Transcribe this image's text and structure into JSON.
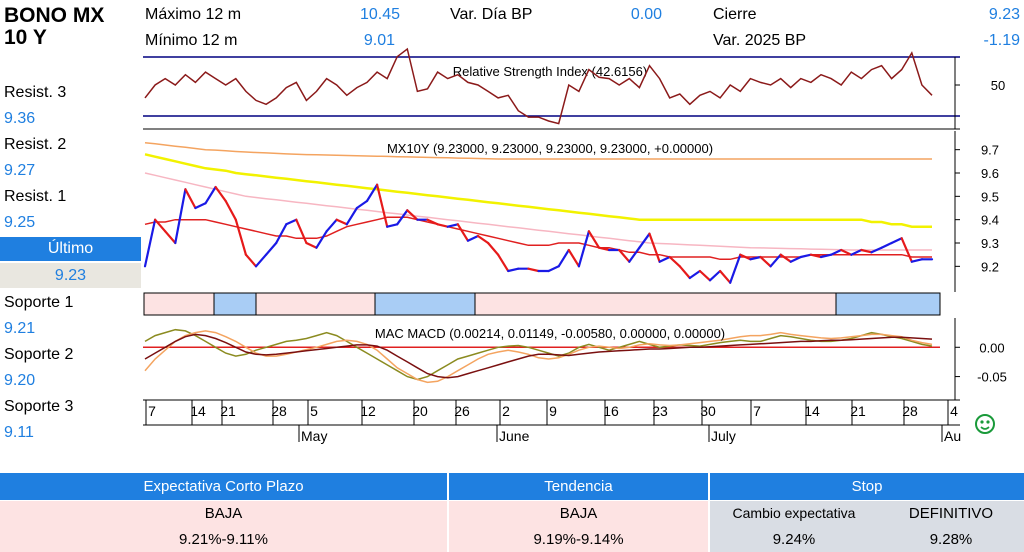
{
  "header": {
    "title_line1": "BONO MX",
    "title_line2": "10 Y",
    "max_label": "Máximo 12 m",
    "max_value": "10.45",
    "min_label": "Mínimo 12 m",
    "min_value": "9.01",
    "var_dia_label": "Var. Día BP",
    "var_dia_value": "0.00",
    "cierre_label": "Cierre",
    "cierre_value": "9.23",
    "var_2025_label": "Var. 2025 BP",
    "var_2025_value": "-1.19"
  },
  "levels": {
    "resist3_label": "Resist. 3",
    "resist3_value": "9.36",
    "resist2_label": "Resist. 2",
    "resist2_value": "9.27",
    "resist1_label": "Resist. 1",
    "resist1_value": "9.25",
    "ultimo_label": "Último",
    "ultimo_value": "9.23",
    "soporte1_label": "Soporte 1",
    "soporte1_value": "9.21",
    "soporte2_label": "Soporte 2",
    "soporte2_value": "9.20",
    "soporte3_label": "Soporte 3",
    "soporte3_value": "9.11"
  },
  "bottom": {
    "expectativa_header": "Expectativa Corto Plazo",
    "expectativa_value": "BAJA",
    "expectativa_range": "9.21%-9.11%",
    "tendencia_header": "Tendencia",
    "tendencia_value": "BAJA",
    "tendencia_range": "9.19%-9.14%",
    "stop_header": "Stop",
    "cambio_label": "Cambio expectativa",
    "cambio_value": "9.24%",
    "definitivo_label": "DEFINITIVO",
    "definitivo_value": "9.28%"
  },
  "colors": {
    "accent": "#1f7fe0",
    "price_up": "#1a1ae6",
    "price_down": "#e61a1a",
    "rsi_line": "#8b1a1a",
    "band_pink": "#fde3e3",
    "band_blue": "#a9cdf5"
  },
  "chart_data": [
    {
      "type": "line",
      "title": "Relative Strength Index (42.6156)",
      "yticks": [
        50
      ],
      "ylim": [
        15,
        85
      ],
      "bands": [
        30,
        70
      ],
      "x": [
        0,
        1,
        2,
        3,
        4,
        5,
        6,
        7,
        8,
        9,
        10,
        11,
        12,
        13,
        14,
        15,
        16,
        17,
        18,
        19,
        20,
        21,
        22,
        23,
        24,
        25,
        26,
        27,
        28,
        29,
        30,
        31,
        32,
        33,
        34,
        35,
        36,
        37,
        38,
        39,
        40,
        41,
        42,
        43,
        44,
        45,
        46,
        47,
        48,
        49,
        50,
        51,
        52,
        53,
        54,
        55,
        56,
        57,
        58,
        59,
        60,
        61,
        62,
        63,
        64,
        65,
        66,
        67,
        68,
        69,
        70,
        71,
        72,
        73,
        74,
        75,
        76,
        77,
        78
      ],
      "values": [
        40,
        50,
        55,
        50,
        58,
        52,
        60,
        55,
        50,
        55,
        45,
        38,
        35,
        40,
        48,
        52,
        38,
        45,
        55,
        50,
        42,
        48,
        52,
        60,
        55,
        72,
        78,
        45,
        47,
        60,
        55,
        58,
        52,
        50,
        45,
        40,
        42,
        30,
        25,
        25,
        22,
        20,
        50,
        45,
        62,
        56,
        55,
        50,
        55,
        48,
        65,
        55,
        40,
        43,
        35,
        42,
        45,
        40,
        50,
        45,
        55,
        52,
        50,
        55,
        48,
        55,
        52,
        58,
        55,
        50,
        60,
        55,
        62,
        65,
        55,
        62,
        75,
        50,
        42
      ]
    },
    {
      "type": "line",
      "title": "MX10Y (9.23000, 9.23000, 9.23000, 9.23000, +0.00000)",
      "yticks": [
        9.2,
        9.3,
        9.4,
        9.5,
        9.6,
        9.7
      ],
      "ylim": [
        9.09,
        9.78
      ],
      "series": [
        {
          "values": [
            9.2,
            9.4,
            9.35,
            9.3,
            9.53,
            9.45,
            9.47,
            9.54,
            9.48,
            9.4,
            9.25,
            9.2,
            9.25,
            9.3,
            9.38,
            9.4,
            9.3,
            9.28,
            9.35,
            9.4,
            9.38,
            9.45,
            9.48,
            9.55,
            9.37,
            9.38,
            9.44,
            9.4,
            9.4,
            9.38,
            9.37,
            9.38,
            9.31,
            9.33,
            9.3,
            9.25,
            9.18,
            9.19,
            9.19,
            9.18,
            9.18,
            9.2,
            9.27,
            9.2,
            9.35,
            9.28,
            9.27,
            9.27,
            9.22,
            9.28,
            9.34,
            9.22,
            9.24,
            9.2,
            9.15,
            9.18,
            9.14,
            9.18,
            9.13,
            9.25,
            9.23,
            9.24,
            9.2,
            9.25,
            9.22,
            9.24,
            9.25,
            9.24,
            9.25,
            9.27,
            9.25,
            9.27,
            9.26,
            9.28,
            9.3,
            9.32,
            9.22,
            9.23,
            9.23
          ]
        },
        {
          "values": [
            9.38,
            9.39,
            9.39,
            9.4,
            9.4,
            9.4,
            9.4,
            9.39,
            9.38,
            9.37,
            9.36,
            9.35,
            9.34,
            9.33,
            9.33,
            9.32,
            9.32,
            9.32,
            9.33,
            9.35,
            9.37,
            9.38,
            9.39,
            9.4,
            9.41,
            9.41,
            9.41,
            9.4,
            9.39,
            9.38,
            9.37,
            9.36,
            9.35,
            9.34,
            9.33,
            9.32,
            9.31,
            9.3,
            9.29,
            9.29,
            9.29,
            9.3,
            9.3,
            9.3,
            9.29,
            9.28,
            9.28,
            9.27,
            9.26,
            9.26,
            9.25,
            9.25,
            9.24,
            9.24,
            9.24,
            9.24,
            9.24,
            9.23,
            9.23,
            9.24,
            9.24,
            9.24,
            9.24,
            9.24,
            9.24,
            9.24,
            9.25,
            9.25,
            9.25,
            9.25,
            9.25,
            9.25,
            9.25,
            9.25,
            9.25,
            9.25,
            9.24,
            9.24,
            9.24
          ]
        },
        {
          "values": [
            9.73,
            9.725,
            9.72,
            9.715,
            9.71,
            9.705,
            9.7,
            9.698,
            9.695,
            9.692,
            9.69,
            9.688,
            9.686,
            9.684,
            9.682,
            9.68,
            9.679,
            9.678,
            9.677,
            9.676,
            9.675,
            9.674,
            9.673,
            9.672,
            9.671,
            9.67,
            9.669,
            9.668,
            9.667,
            9.666,
            9.665,
            9.664,
            9.663,
            9.662,
            9.661,
            9.66,
            9.66,
            9.66,
            9.66,
            9.66,
            9.66,
            9.66,
            9.66,
            9.66,
            9.66,
            9.66,
            9.66,
            9.66,
            9.66,
            9.66,
            9.66,
            9.66,
            9.66,
            9.66,
            9.66,
            9.66,
            9.66,
            9.66,
            9.66,
            9.66,
            9.66,
            9.66,
            9.66,
            9.66,
            9.66,
            9.66,
            9.66,
            9.66,
            9.66,
            9.66,
            9.66,
            9.66,
            9.66,
            9.66,
            9.66,
            9.66,
            9.66,
            9.66,
            9.66
          ]
        },
        {
          "values": [
            9.68,
            9.67,
            9.66,
            9.65,
            9.64,
            9.63,
            9.62,
            9.615,
            9.61,
            9.6,
            9.595,
            9.59,
            9.585,
            9.58,
            9.575,
            9.57,
            9.565,
            9.56,
            9.555,
            9.55,
            9.545,
            9.54,
            9.535,
            9.53,
            9.525,
            9.52,
            9.515,
            9.51,
            9.505,
            9.5,
            9.495,
            9.49,
            9.485,
            9.48,
            9.475,
            9.47,
            9.465,
            9.46,
            9.455,
            9.45,
            9.445,
            9.44,
            9.435,
            9.43,
            9.425,
            9.42,
            9.415,
            9.41,
            9.405,
            9.4,
            9.4,
            9.4,
            9.4,
            9.4,
            9.4,
            9.4,
            9.4,
            9.4,
            9.4,
            9.4,
            9.4,
            9.4,
            9.4,
            9.4,
            9.4,
            9.4,
            9.4,
            9.4,
            9.4,
            9.4,
            9.4,
            9.4,
            9.39,
            9.39,
            9.38,
            9.38,
            9.37,
            9.37,
            9.37
          ]
        },
        {
          "values": [
            9.6,
            9.59,
            9.58,
            9.57,
            9.56,
            9.55,
            9.54,
            9.53,
            9.52,
            9.51,
            9.5,
            9.495,
            9.49,
            9.485,
            9.48,
            9.475,
            9.47,
            9.465,
            9.46,
            9.455,
            9.45,
            9.445,
            9.44,
            9.435,
            9.43,
            9.425,
            9.42,
            9.415,
            9.41,
            9.405,
            9.4,
            9.395,
            9.39,
            9.385,
            9.38,
            9.375,
            9.37,
            9.365,
            9.36,
            9.355,
            9.35,
            9.345,
            9.34,
            9.335,
            9.33,
            9.325,
            9.32,
            9.315,
            9.31,
            9.305,
            9.3,
            9.298,
            9.296,
            9.294,
            9.292,
            9.29,
            9.288,
            9.286,
            9.284,
            9.282,
            9.28,
            9.279,
            9.278,
            9.277,
            9.276,
            9.275,
            9.274,
            9.273,
            9.272,
            9.271,
            9.27,
            9.27,
            9.27,
            9.27,
            9.27,
            9.27,
            9.27,
            9.27,
            9.27
          ]
        }
      ]
    },
    {
      "type": "line",
      "title": "MAC MACD (0.00214, 0.01149, -0.00580, 0.00000, 0.00000)",
      "yticks": [
        0.0,
        -0.05
      ],
      "ytick_labels": [
        "0.00",
        "-0.05"
      ],
      "ylim": [
        -0.09,
        0.05
      ],
      "x_tick_labels": [
        "7",
        "14",
        "21",
        "28",
        "5",
        "12",
        "20",
        "26",
        "2",
        "9",
        "16",
        "23",
        "30",
        "7",
        "14",
        "21",
        "28",
        "4"
      ],
      "month_labels": [
        "May",
        "June",
        "July",
        "Au"
      ],
      "series": [
        {
          "values": [
            0.01,
            0.02,
            0.025,
            0.03,
            0.028,
            0.02,
            0.01,
            0.0,
            -0.01,
            -0.015,
            -0.012,
            -0.005,
            0.0,
            0.005,
            0.01,
            0.012,
            0.015,
            0.02,
            0.025,
            0.02,
            0.01,
            0.0,
            -0.01,
            -0.02,
            -0.03,
            -0.04,
            -0.05,
            -0.055,
            -0.05,
            -0.04,
            -0.03,
            -0.02,
            -0.015,
            -0.01,
            -0.005,
            0.0,
            0.002,
            0.003,
            0.0,
            -0.005,
            -0.01,
            -0.015,
            -0.01,
            0.0,
            0.005,
            0.0,
            -0.005,
            0.0,
            0.005,
            0.01,
            0.005,
            0.0,
            0.002,
            0.004,
            0.003,
            0.002,
            0.005,
            0.008,
            0.01,
            0.012,
            0.01,
            0.01,
            0.015,
            0.02,
            0.018,
            0.015,
            0.012,
            0.01,
            0.01,
            0.012,
            0.015,
            0.02,
            0.025,
            0.022,
            0.018,
            0.015,
            0.01,
            0.005,
            0.002
          ]
        },
        {
          "values": [
            -0.02,
            -0.01,
            0.0,
            0.01,
            0.018,
            0.022,
            0.02,
            0.015,
            0.008,
            0.0,
            -0.008,
            -0.012,
            -0.013,
            -0.012,
            -0.01,
            -0.008,
            -0.006,
            -0.004,
            -0.002,
            0.0,
            0.002,
            0.004,
            0.004,
            0.002,
            -0.005,
            -0.015,
            -0.025,
            -0.035,
            -0.045,
            -0.05,
            -0.052,
            -0.05,
            -0.045,
            -0.04,
            -0.035,
            -0.03,
            -0.025,
            -0.02,
            -0.015,
            -0.012,
            -0.012,
            -0.013,
            -0.014,
            -0.012,
            -0.01,
            -0.008,
            -0.007,
            -0.006,
            -0.005,
            -0.004,
            -0.003,
            -0.003,
            -0.002,
            -0.001,
            0.0,
            0.0,
            0.001,
            0.002,
            0.003,
            0.004,
            0.005,
            0.006,
            0.007,
            0.008,
            0.009,
            0.01,
            0.01,
            0.011,
            0.012,
            0.012,
            0.013,
            0.014,
            0.015,
            0.016,
            0.017,
            0.017,
            0.016,
            0.015,
            0.014
          ]
        },
        {
          "values": [
            -0.04,
            -0.02,
            -0.005,
            0.01,
            0.02,
            0.025,
            0.028,
            0.025,
            0.018,
            0.01,
            0.0,
            -0.01,
            -0.015,
            -0.015,
            -0.012,
            -0.008,
            -0.004,
            0.0,
            0.005,
            0.01,
            0.012,
            0.01,
            0.005,
            -0.005,
            -0.02,
            -0.035,
            -0.045,
            -0.055,
            -0.06,
            -0.058,
            -0.05,
            -0.04,
            -0.03,
            -0.02,
            -0.012,
            -0.008,
            -0.005,
            -0.008,
            -0.012,
            -0.018,
            -0.02,
            -0.018,
            -0.012,
            -0.005,
            0.0,
            0.002,
            0.0,
            -0.002,
            0.0,
            0.004,
            0.006,
            0.004,
            0.003,
            0.004,
            0.006,
            0.008,
            0.01,
            0.012,
            0.015,
            0.018,
            0.02,
            0.02,
            0.022,
            0.025,
            0.022,
            0.02,
            0.018,
            0.016,
            0.015,
            0.016,
            0.018,
            0.02,
            0.022,
            0.022,
            0.02,
            0.018,
            0.012,
            0.008,
            0.005
          ]
        }
      ]
    }
  ]
}
